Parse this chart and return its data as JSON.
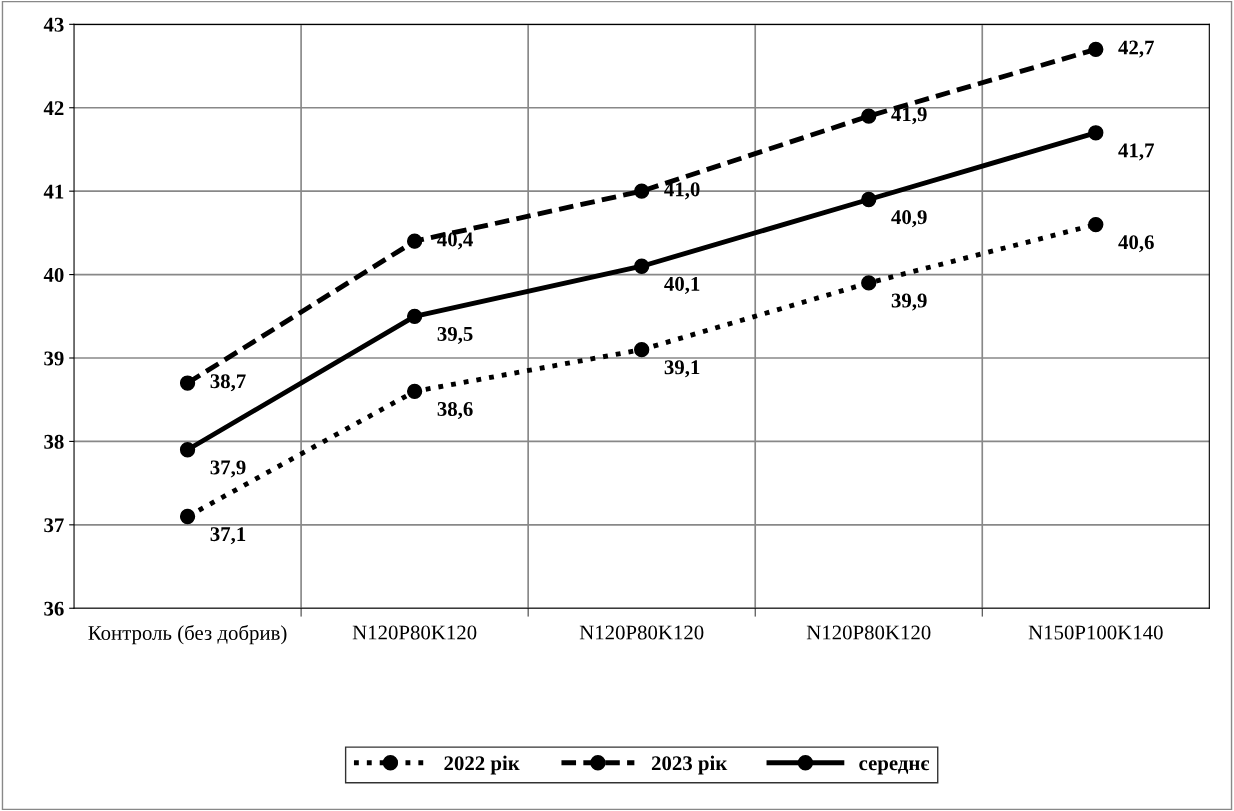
{
  "chart_data": {
    "type": "line",
    "categories": [
      "Контроль (без добрив)",
      "N120P80K120",
      "N120P80K120",
      "N120P80K120",
      "N150P100K140"
    ],
    "series": [
      {
        "name": "2022 рік",
        "color": "#000000",
        "line_style": "dotted",
        "values": [
          37.1,
          38.6,
          39.1,
          39.9,
          40.6
        ],
        "value_labels": [
          "37,1",
          "38,6",
          "39,1",
          "39,9",
          "40,6"
        ]
      },
      {
        "name": "2023 рік",
        "color": "#000000",
        "line_style": "dashed",
        "values": [
          38.7,
          40.4,
          41.0,
          41.9,
          42.7
        ],
        "value_labels": [
          "38,7",
          "40,4",
          "41,0",
          "41,9",
          "42,7"
        ]
      },
      {
        "name": "середнє",
        "color": "#000000",
        "line_style": "solid",
        "values": [
          37.9,
          39.5,
          40.1,
          40.9,
          41.7
        ],
        "value_labels": [
          "37,9",
          "39,5",
          "40,1",
          "40,9",
          "41,7"
        ]
      }
    ],
    "ylim": [
      36,
      43
    ],
    "yticks": [
      36,
      37,
      38,
      39,
      40,
      41,
      42,
      43
    ],
    "grid": true,
    "legend": "bottom",
    "marker": "circle"
  }
}
